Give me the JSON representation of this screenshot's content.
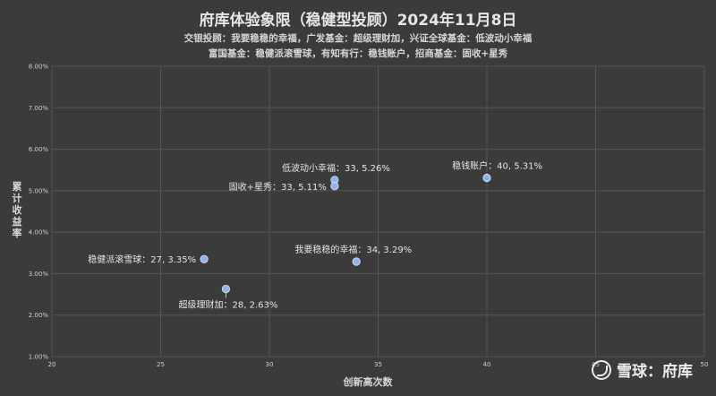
{
  "chart_data": {
    "type": "scatter",
    "title": "府库体验象限（稳健型投顾）2024年11月8日",
    "subtitle_lines": [
      "交银投顾：我要稳稳的幸福，广发基金：超级理财加，兴证全球基金：低波动小幸福",
      "富国基金：稳健派滚雪球，有知有行：稳钱账户，招商基金：固收+星秀"
    ],
    "xlabel": "创新高次数",
    "ylabel": "累计收益率",
    "xlim": [
      20,
      50
    ],
    "ylim": [
      0.01,
      0.08
    ],
    "x_ticks": [
      20,
      25,
      30,
      35,
      40,
      45,
      50
    ],
    "y_ticks": [
      0.01,
      0.02,
      0.03,
      0.04,
      0.05,
      0.06,
      0.07,
      0.08
    ],
    "y_tick_labels": [
      "1.00%",
      "2.00%",
      "3.00%",
      "4.00%",
      "5.00%",
      "6.00%",
      "7.00%",
      "8.00%"
    ],
    "grid": true,
    "point_color": "#8fb3e8",
    "points": [
      {
        "name": "低波动小幸福",
        "x": 33,
        "y": 0.0526,
        "label": "低波动小幸福：33, 5.26%",
        "label_pos": "above-left"
      },
      {
        "name": "固收+星秀",
        "x": 33,
        "y": 0.0511,
        "label": "固收+星秀：33, 5.11%",
        "label_pos": "left"
      },
      {
        "name": "稳钱账户",
        "x": 40,
        "y": 0.0531,
        "label": "稳钱账户：40, 5.31%",
        "label_pos": "above-left"
      },
      {
        "name": "我要稳稳的幸福",
        "x": 34,
        "y": 0.0329,
        "label": "我要稳稳的幸福：34, 3.29%",
        "label_pos": "above-left"
      },
      {
        "name": "稳健派滚雪球",
        "x": 27,
        "y": 0.0335,
        "label": "稳健派滚雪球：27, 3.35%",
        "label_pos": "left"
      },
      {
        "name": "超级理财加",
        "x": 28,
        "y": 0.0263,
        "label": "超级理财加：28, 2.63%",
        "label_pos": "below"
      }
    ]
  },
  "watermark": {
    "text": "雪球：府库"
  }
}
